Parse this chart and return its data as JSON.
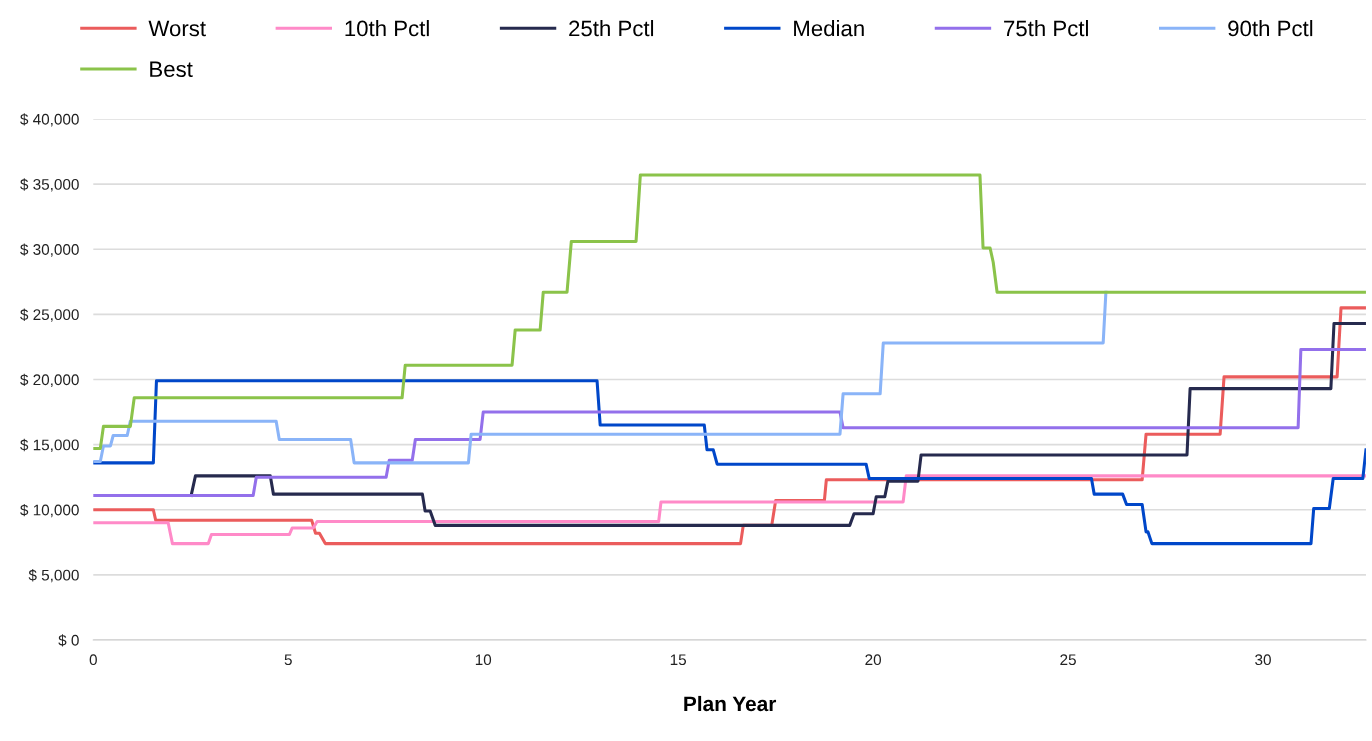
{
  "chart_data": {
    "type": "line",
    "xlabel": "Plan Year",
    "legend": "top",
    "grid": "y",
    "marker": "none",
    "line_style": "solid",
    "xlim": [
      0,
      32.64
    ],
    "xticks": [
      0,
      5,
      10,
      15,
      20,
      25,
      30
    ],
    "ylim": [
      0,
      40000
    ],
    "yticks": [
      {
        "value": 0,
        "label": "$ 0"
      },
      {
        "value": 5000,
        "label": "$ 5,000"
      },
      {
        "value": 10000,
        "label": "$ 10,000"
      },
      {
        "value": 15000,
        "label": "$ 15,000"
      },
      {
        "value": 20000,
        "label": "$ 20,000"
      },
      {
        "value": 25000,
        "label": "$ 25,000"
      },
      {
        "value": 30000,
        "label": "$ 30,000"
      },
      {
        "value": 35000,
        "label": "$ 35,000"
      },
      {
        "value": 40000,
        "label": "$ 40,000"
      }
    ],
    "series": [
      {
        "name": "Worst",
        "color": "#eb5c5c",
        "x": [
          0,
          1.54,
          1.6,
          5.6,
          5.7,
          5.8,
          5.95,
          16.6,
          16.67,
          17.4,
          17.5,
          18.75,
          18.8,
          26.9,
          27.0,
          28.9,
          29.0,
          31.9,
          32.0,
          32.64
        ],
        "values": [
          10000,
          10000,
          9200,
          9200,
          8200,
          8200,
          7400,
          7400,
          8800,
          8800,
          10700,
          10700,
          12300,
          12300,
          15800,
          15800,
          20200,
          20200,
          25500,
          25500
        ]
      },
      {
        "name": "10th Pctl",
        "color": "#ff8ac8",
        "x": [
          0,
          1.92,
          2.03,
          2.95,
          3.03,
          5.03,
          5.1,
          5.64,
          5.74,
          14.5,
          14.56,
          20.77,
          20.85,
          32.64
        ],
        "values": [
          9000,
          9000,
          7400,
          7400,
          8100,
          8100,
          8600,
          8600,
          9100,
          9100,
          10600,
          10600,
          12600,
          12600
        ]
      },
      {
        "name": "25th Pctl",
        "color": "#262a4e",
        "x": [
          2.51,
          2.62,
          4.54,
          4.62,
          8.44,
          8.51,
          8.64,
          8.77,
          19.4,
          19.51,
          20.0,
          20.08,
          20.3,
          20.38,
          21.15,
          21.23,
          28.05,
          28.13,
          31.74,
          31.82,
          32.64
        ],
        "values": [
          11100,
          12600,
          12600,
          11200,
          11200,
          9900,
          9900,
          8800,
          8800,
          9700,
          9700,
          11000,
          11000,
          12200,
          12200,
          14200,
          14200,
          19300,
          19300,
          24300,
          24300
        ]
      },
      {
        "name": "Median",
        "color": "#0047c9",
        "x": [
          0,
          1.54,
          1.62,
          12.92,
          13.0,
          15.67,
          15.74,
          15.9,
          16.0,
          19.82,
          19.9,
          25.6,
          25.67,
          26.4,
          26.5,
          26.9,
          27.0,
          27.05,
          27.15,
          31.23,
          31.3,
          31.7,
          31.8,
          32.56,
          32.64
        ],
        "values": [
          13600,
          13600,
          19900,
          19900,
          16500,
          16500,
          14600,
          14600,
          13500,
          13500,
          12400,
          12400,
          11200,
          11200,
          10400,
          10400,
          8300,
          8300,
          7400,
          7400,
          10100,
          10100,
          12400,
          12400,
          14600
        ]
      },
      {
        "name": "75th Pctl",
        "color": "#9370eb",
        "x": [
          0,
          4.1,
          4.18,
          7.51,
          7.59,
          8.18,
          8.26,
          9.92,
          10.0,
          19.15,
          19.23,
          30.9,
          30.97,
          32.64
        ],
        "values": [
          11100,
          11100,
          12500,
          12500,
          13800,
          13800,
          15400,
          15400,
          17500,
          17500,
          16300,
          16300,
          22300,
          22300
        ]
      },
      {
        "name": "90th Pctl",
        "color": "#8ab4f8",
        "x": [
          0,
          0.18,
          0.26,
          0.44,
          0.51,
          0.87,
          0.95,
          4.69,
          4.77,
          6.6,
          6.69,
          9.62,
          9.69,
          19.15,
          19.23,
          20.18,
          20.26,
          25.9,
          25.97
        ],
        "values": [
          13700,
          13700,
          14900,
          14900,
          15700,
          15700,
          16800,
          16800,
          15400,
          15400,
          13600,
          13600,
          15800,
          15800,
          18900,
          18900,
          22800,
          22800,
          26700
        ]
      },
      {
        "name": "Best",
        "color": "#8bc34a",
        "x": [
          0,
          0.18,
          0.26,
          0.95,
          1.05,
          7.92,
          8.0,
          10.74,
          10.82,
          11.46,
          11.54,
          12.15,
          12.26,
          13.92,
          14.03,
          22.74,
          22.82,
          23.0,
          23.08,
          23.18,
          32.64
        ],
        "values": [
          14700,
          14700,
          16400,
          16400,
          18600,
          18600,
          21100,
          21100,
          23800,
          23800,
          26700,
          26700,
          30600,
          30600,
          35700,
          35700,
          30100,
          30100,
          29000,
          26700,
          26700
        ]
      }
    ]
  }
}
